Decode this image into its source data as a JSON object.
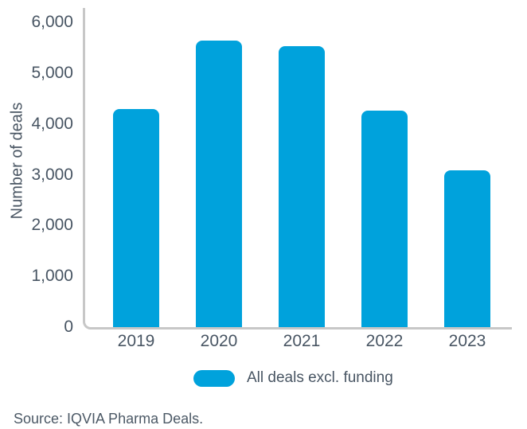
{
  "chart_data": {
    "type": "bar",
    "title": "",
    "categories": [
      "2019",
      "2020",
      "2021",
      "2022",
      "2023"
    ],
    "values": [
      4300,
      5640,
      5530,
      4260,
      3090
    ],
    "series_name": "All deals excl. funding",
    "xlabel": "",
    "ylabel": "Number of deals",
    "ylim": [
      0,
      6000
    ],
    "yticks": [
      0,
      1000,
      2000,
      3000,
      4000,
      5000,
      6000
    ],
    "ytick_labels": [
      "0",
      "1,000",
      "2,000",
      "3,000",
      "4,000",
      "5,000",
      "6,000"
    ],
    "grid": false,
    "legend_position": "bottom"
  },
  "legend": {
    "label": "All deals excl. funding"
  },
  "source": {
    "text": "Source: IQVIA Pharma Deals."
  },
  "colors": {
    "bar": "#00a2dc",
    "axis": "#c7c7c7",
    "text": "#485563"
  }
}
